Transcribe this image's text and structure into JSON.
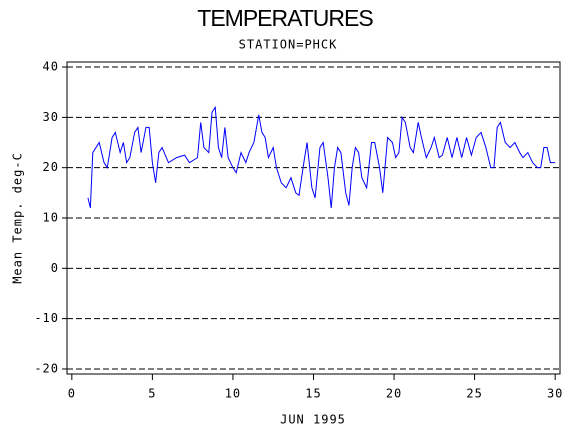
{
  "chart_data": {
    "type": "line",
    "title": "TEMPERATURES",
    "subtitle": "STATION=PHCK",
    "x_label": "JUN 1995",
    "y_label": "Mean Temp. deg-C",
    "xlim": [
      -0.3,
      30.3
    ],
    "ylim": [
      -21,
      41
    ],
    "xticks": [
      0,
      5,
      10,
      15,
      20,
      25,
      30
    ],
    "yticks": [
      -20,
      -10,
      0,
      10,
      20,
      30,
      40
    ],
    "grid": true,
    "grid_style": "dashed",
    "x": [
      1.0,
      1.15,
      1.3,
      1.5,
      1.7,
      2.0,
      2.2,
      2.5,
      2.7,
      3.0,
      3.2,
      3.4,
      3.6,
      3.9,
      4.1,
      4.3,
      4.6,
      4.8,
      5.0,
      5.2,
      5.4,
      5.6,
      6.0,
      6.5,
      7.0,
      7.3,
      7.8,
      8.0,
      8.2,
      8.5,
      8.7,
      8.9,
      9.1,
      9.3,
      9.5,
      9.7,
      10.0,
      10.2,
      10.5,
      10.8,
      11.0,
      11.3,
      11.6,
      11.8,
      12.0,
      12.2,
      12.5,
      12.7,
      13.0,
      13.3,
      13.6,
      13.9,
      14.1,
      14.4,
      14.6,
      14.9,
      15.1,
      15.4,
      15.6,
      15.9,
      16.1,
      16.3,
      16.5,
      16.7,
      17.0,
      17.2,
      17.4,
      17.6,
      17.8,
      18.0,
      18.3,
      18.6,
      18.8,
      19.1,
      19.3,
      19.6,
      19.9,
      20.1,
      20.3,
      20.5,
      20.7,
      21.0,
      21.2,
      21.5,
      21.7,
      22.0,
      22.3,
      22.5,
      22.8,
      23.0,
      23.3,
      23.6,
      23.9,
      24.2,
      24.5,
      24.8,
      25.1,
      25.4,
      25.7,
      26.0,
      26.2,
      26.4,
      26.6,
      26.9,
      27.2,
      27.5,
      27.8,
      28.0,
      28.3,
      28.6,
      28.9,
      29.1,
      29.3,
      29.5,
      29.7,
      30.0
    ],
    "series": [
      {
        "name": "Mean Temp",
        "color": "#0000ff",
        "values": [
          14,
          12,
          23,
          24,
          25,
          21,
          20,
          26,
          27,
          23,
          25,
          21,
          22,
          27,
          28,
          23,
          28,
          28,
          21,
          17,
          23,
          24,
          21,
          22,
          22.5,
          21,
          22,
          29,
          24,
          23,
          31,
          32,
          24,
          22,
          28,
          22,
          20,
          19,
          23,
          21,
          23,
          25,
          30.5,
          27,
          26,
          22,
          24,
          20,
          17,
          16,
          18,
          15,
          14.5,
          21,
          25,
          16,
          14,
          24,
          25,
          18,
          12,
          20,
          24,
          23,
          15,
          12.5,
          20,
          24,
          23,
          18,
          16,
          25,
          25,
          20,
          15,
          26,
          25,
          22,
          23,
          30,
          29,
          24,
          23,
          29,
          26,
          22,
          24,
          26,
          22,
          22.5,
          26,
          22,
          26,
          22,
          26,
          22.5,
          26,
          27,
          24,
          20,
          20,
          28,
          29,
          25,
          24,
          25,
          23,
          22,
          23,
          21,
          20,
          20,
          24,
          24,
          21,
          21
        ]
      }
    ]
  }
}
